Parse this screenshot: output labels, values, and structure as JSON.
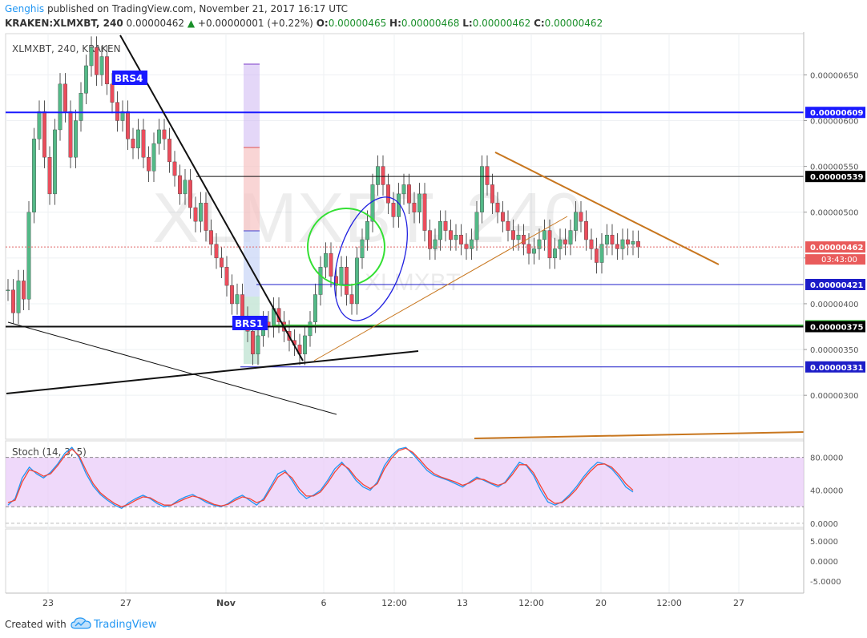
{
  "header": {
    "author": "Genghis",
    "published_text": "published on TradingView.com, November 21, 2017 16:17 UTC",
    "symbol_line": "KRAKEN:XLMXBT, 240",
    "last": "0.00000462",
    "change": "+0.00000001 (+0.22%)",
    "o_label": "O:",
    "o": "0.00000465",
    "h_label": "H:",
    "h": "0.00000468",
    "l_label": "L:",
    "l": "0.00000462",
    "c_label": "C:",
    "c": "0.00000462"
  },
  "footer": {
    "created": "Created with",
    "brand": "TradingView"
  },
  "colors": {
    "up": "#53b987",
    "down": "#eb4d5c",
    "blue": "#1a1aff",
    "navy": "#1d1dc8",
    "green_line": "#3ec83e",
    "brown": "#c8761e",
    "stoch_fill": "#e9ccf8",
    "k_line": "#2196f3",
    "d_line": "#f44336"
  },
  "chart_data": [
    {
      "type": "candlestick",
      "title": "XLMXBT, 240, KRAKEN",
      "watermark": "XLMXBT, 240",
      "watermark_sub": "XLMXBT",
      "ylim": [
        2.52e-06,
        6.95e-06
      ],
      "y_ticks": [
        "0.00000650",
        "0.00000600",
        "0.00000550",
        "0.00000500",
        "0.00000450",
        "0.00000400",
        "0.00000350",
        "0.00000300"
      ],
      "x_ticks": [
        "23",
        "27",
        "Nov",
        "6",
        "12:00",
        "13",
        "12:00",
        "20",
        "12:00",
        "27"
      ],
      "ohlc_close": [
        4.15e-06,
        3.9e-06,
        4.25e-06,
        4.05e-06,
        5e-06,
        5.8e-06,
        6.1e-06,
        5.6e-06,
        5.2e-06,
        5.9e-06,
        6.4e-06,
        6.1e-06,
        5.6e-06,
        6e-06,
        6.3e-06,
        6.6e-06,
        6.8e-06,
        6.5e-06,
        6.7e-06,
        6.4e-06,
        6.2e-06,
        6e-06,
        6.1e-06,
        5.8e-06,
        5.7e-06,
        5.9e-06,
        5.6e-06,
        5.45e-06,
        5.75e-06,
        5.9e-06,
        5.8e-06,
        5.55e-06,
        5.4e-06,
        5.2e-06,
        5.35e-06,
        5.05e-06,
        4.9e-06,
        5.1e-06,
        4.8e-06,
        4.65e-06,
        4.5e-06,
        4.4e-06,
        4.2e-06,
        4e-06,
        4.1e-06,
        3.85e-06,
        3.7e-06,
        3.45e-06,
        3.65e-06,
        3.8e-06,
        3.75e-06,
        3.95e-06,
        3.8e-06,
        3.7e-06,
        3.6e-06,
        3.55e-06,
        3.45e-06,
        3.65e-06,
        3.8e-06,
        4.1e-06,
        4.4e-06,
        4.55e-06,
        4.3e-06,
        4.2e-06,
        4.4e-06,
        4.1e-06,
        4e-06,
        4.5e-06,
        4.7e-06,
        4.9e-06,
        5.3e-06,
        5.5e-06,
        5.3e-06,
        5.1e-06,
        4.95e-06,
        5.2e-06,
        5.3e-06,
        5.1e-06,
        5e-06,
        5.2e-06,
        4.8e-06,
        4.6e-06,
        4.7e-06,
        4.9e-06,
        4.8e-06,
        4.7e-06,
        4.75e-06,
        4.65e-06,
        4.6e-06,
        4.7e-06,
        5e-06,
        5.5e-06,
        5.3e-06,
        5.1e-06,
        5e-06,
        4.9e-06,
        4.8e-06,
        4.7e-06,
        4.75e-06,
        4.65e-06,
        4.55e-06,
        4.6e-06,
        4.7e-06,
        4.8e-06,
        4.5e-06,
        4.6e-06,
        4.7e-06,
        4.65e-06,
        4.8e-06,
        5e-06,
        4.9e-06,
        4.7e-06,
        4.6e-06,
        4.45e-06,
        4.65e-06,
        4.75e-06,
        4.65e-06,
        4.6e-06,
        4.7e-06,
        4.65e-06,
        4.68e-06,
        4.62e-06
      ],
      "horizontal_levels": [
        {
          "value": 6.09e-06,
          "label": "0.00000609",
          "style": "blue-thick"
        },
        {
          "value": 5.39e-06,
          "label": "0.00000539",
          "style": "black-thin"
        },
        {
          "value": 4.62e-06,
          "label": "0.00000462",
          "style": "last-price"
        },
        {
          "value": 4.21e-06,
          "label": "0.00000421",
          "style": "navy-thin"
        },
        {
          "value": 3.76e-06,
          "label": "0.00000376",
          "style": "green-thick"
        },
        {
          "value": 3.75e-06,
          "label": "0.00000375",
          "style": "black-thick"
        },
        {
          "value": 3.31e-06,
          "label": "0.00000331",
          "style": "navy-thin"
        }
      ],
      "countdown": "03:43:00",
      "annotations": [
        "BRS4",
        "BRS1"
      ]
    },
    {
      "type": "line",
      "title": "Stoch (14, 3, 5)",
      "ylim": [
        -5,
        100
      ],
      "y_ticks": [
        "80.0000",
        "40.0000",
        "0.0000"
      ],
      "band": [
        20,
        80
      ],
      "series": [
        {
          "name": "%K",
          "values": [
            22,
            30,
            55,
            68,
            60,
            55,
            62,
            72,
            85,
            92,
            80,
            60,
            45,
            35,
            28,
            22,
            18,
            25,
            30,
            34,
            30,
            24,
            20,
            22,
            28,
            32,
            35,
            30,
            25,
            22,
            20,
            24,
            30,
            34,
            28,
            22,
            30,
            45,
            60,
            64,
            52,
            38,
            30,
            34,
            40,
            52,
            66,
            74,
            64,
            52,
            44,
            40,
            50,
            70,
            82,
            90,
            92,
            84,
            74,
            64,
            58,
            55,
            52,
            48,
            44,
            50,
            56,
            52,
            48,
            44,
            50,
            62,
            74,
            70,
            58,
            40,
            26,
            22,
            26,
            34,
            44,
            56,
            66,
            74,
            72,
            66,
            56,
            44,
            38
          ]
        },
        {
          "name": "%D",
          "values": [
            25,
            28,
            50,
            65,
            62,
            57,
            60,
            70,
            82,
            90,
            82,
            64,
            48,
            37,
            30,
            24,
            20,
            23,
            28,
            32,
            31,
            26,
            22,
            22,
            26,
            30,
            33,
            31,
            27,
            23,
            21,
            23,
            28,
            32,
            30,
            25,
            28,
            42,
            56,
            62,
            55,
            42,
            33,
            33,
            38,
            49,
            62,
            72,
            66,
            55,
            47,
            42,
            48,
            66,
            79,
            88,
            91,
            86,
            77,
            67,
            60,
            56,
            53,
            50,
            46,
            49,
            54,
            53,
            49,
            46,
            49,
            59,
            71,
            71,
            61,
            45,
            30,
            24,
            25,
            32,
            41,
            53,
            63,
            71,
            72,
            68,
            59,
            48,
            40
          ]
        }
      ]
    },
    {
      "type": "line",
      "title": "",
      "ylim": [
        -8,
        8
      ],
      "y_ticks": [
        "5.0000",
        "0.0000",
        "-5.0000"
      ],
      "series": []
    }
  ]
}
